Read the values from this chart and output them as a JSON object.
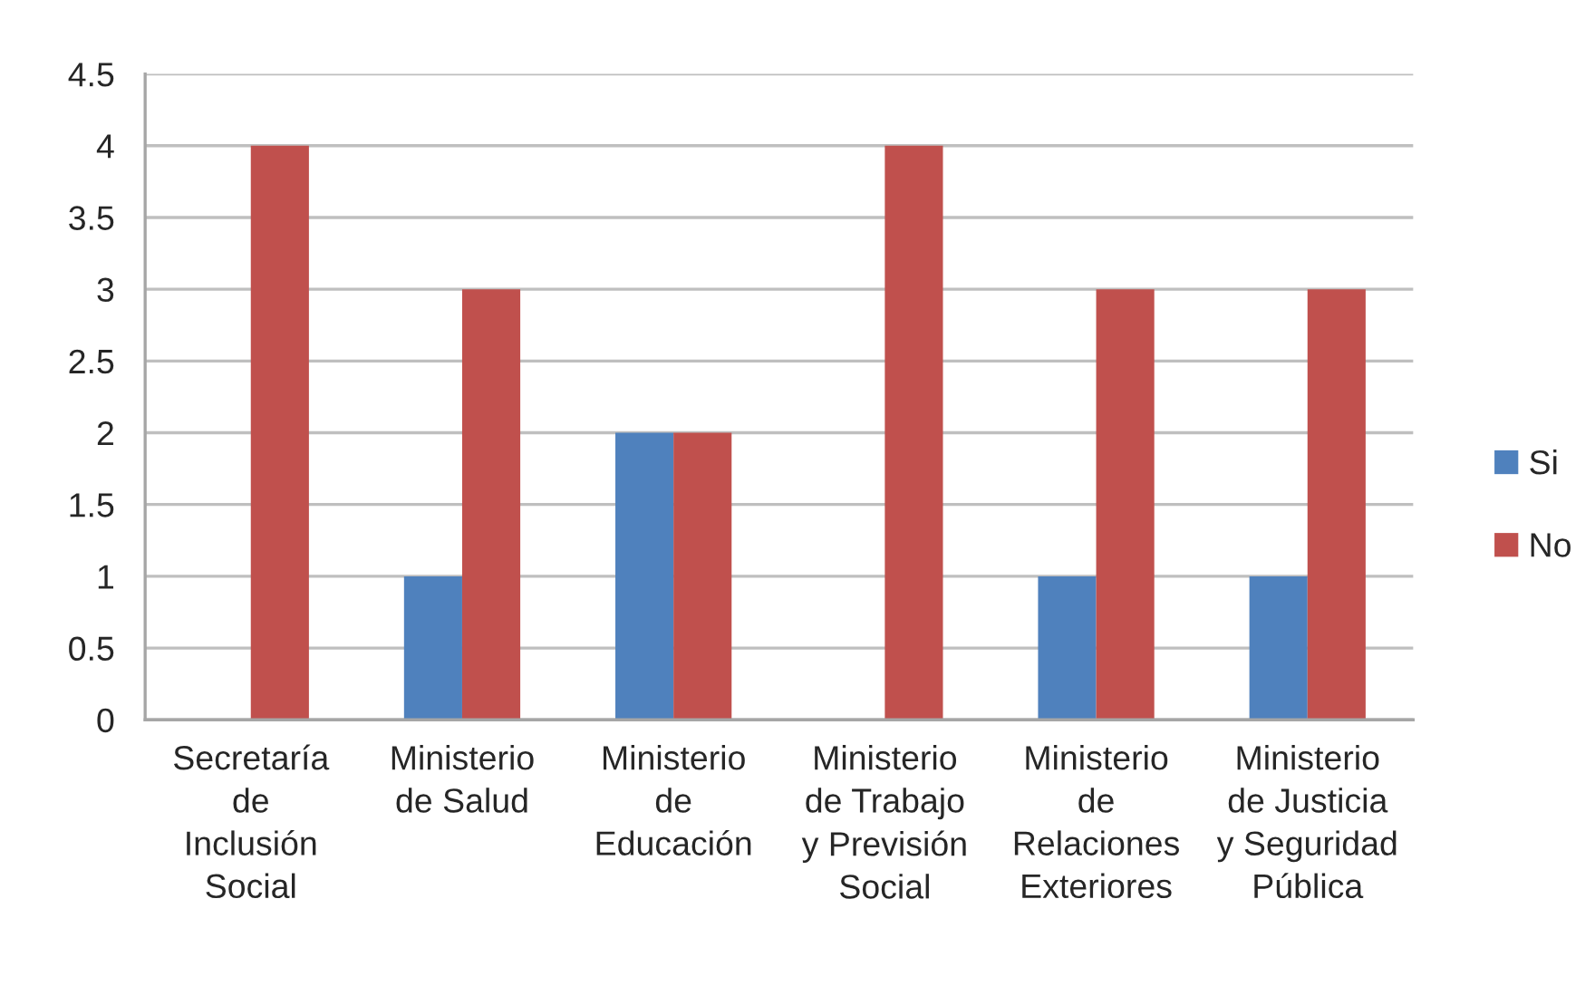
{
  "chart_data": {
    "type": "bar",
    "categories": [
      "Secretaría\nde\nInclusión\nSocial",
      "Ministerio\nde Salud",
      "Ministerio\nde\nEducación",
      "Ministerio\nde Trabajo\ny Previsión\nSocial",
      "Ministerio\nde\nRelaciones\nExteriores",
      "Ministerio\nde Justicia\ny Seguridad\nPública"
    ],
    "series": [
      {
        "name": "Si",
        "color": "#4f81bd",
        "values": [
          0,
          1,
          2,
          0,
          1,
          1
        ]
      },
      {
        "name": "No",
        "color": "#c0504d",
        "values": [
          4,
          3,
          2,
          4,
          3,
          3
        ]
      }
    ],
    "ylim": [
      0,
      4.5
    ],
    "yticks": [
      0,
      0.5,
      1,
      1.5,
      2,
      2.5,
      3,
      3.5,
      4,
      4.5
    ],
    "grid": "y",
    "legend": "right"
  }
}
